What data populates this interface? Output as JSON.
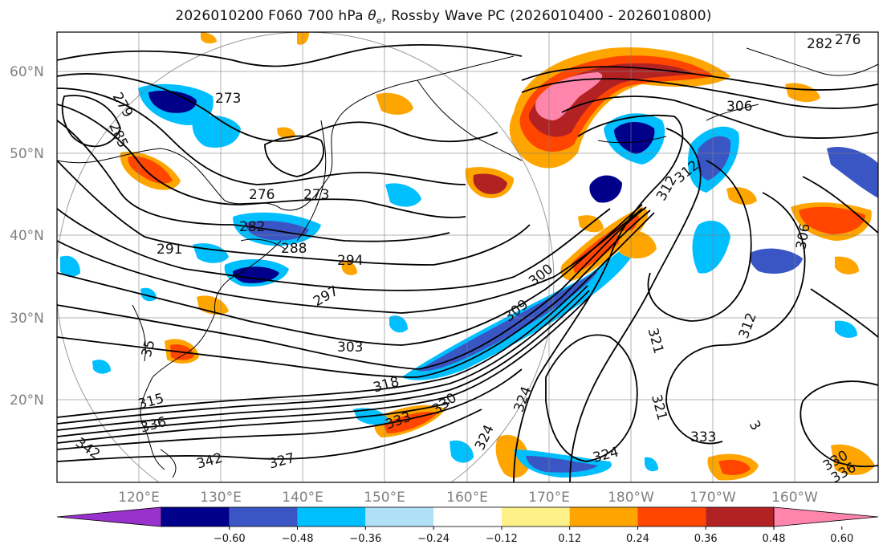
{
  "title_prefix": "2026010200 F060 700 hPa ",
  "title_theta": "θ",
  "title_sub": "e",
  "title_suffix": ", Rossby Wave PC (2026010400 - 2026010800)",
  "lat_labels": [
    "60°N",
    "50°N",
    "40°N",
    "30°N",
    "20°N"
  ],
  "lon_labels": [
    "120°E",
    "130°E",
    "140°E",
    "150°E",
    "160°E",
    "170°E",
    "180°W",
    "170°W",
    "160°W"
  ],
  "contour_labels": [
    "276",
    "282",
    "279",
    "285",
    "273",
    "276",
    "273",
    "282",
    "288",
    "291",
    "294",
    "297",
    "300",
    "303",
    "306",
    "309",
    "312",
    "312",
    "312",
    "306",
    "315",
    "318",
    "321",
    "321",
    "324",
    "324",
    "324",
    "327",
    "330",
    "330",
    "333",
    "333",
    "336",
    "336",
    "342",
    "342",
    "35",
    "3"
  ],
  "colorbar": {
    "ticks": [
      "−0.60",
      "−0.48",
      "−0.36",
      "−0.24",
      "−0.12",
      "0.12",
      "0.24",
      "0.36",
      "0.48",
      "0.60"
    ],
    "colors": [
      "#9932cc",
      "#00008b",
      "#3a56c4",
      "#00bfff",
      "#b0e0f6",
      "#ffffff",
      "#fff18a",
      "#ffa500",
      "#ff4500",
      "#b22222",
      "#ff85ad"
    ]
  },
  "colors": {
    "positive_strong": "#ff85ad",
    "positive": "#ff4500",
    "negative": "#00bfff",
    "contour": "#000000",
    "grid": "#808080"
  }
}
